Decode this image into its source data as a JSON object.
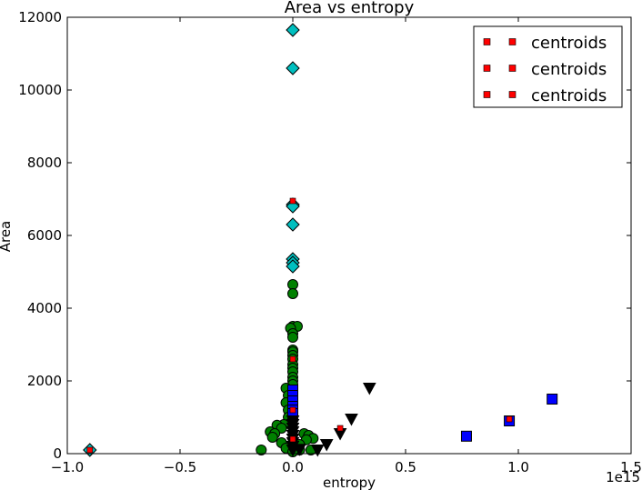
{
  "chart_data": {
    "type": "scatter",
    "title": "Area vs entropy",
    "xlabel": "entropy",
    "ylabel": "Area",
    "x_offset_label": "1e15",
    "xlim": [
      -1.0,
      1.5
    ],
    "ylim": [
      0,
      12000
    ],
    "x_ticks": [
      -1.0,
      -0.5,
      0.0,
      0.5,
      1.0,
      1.5
    ],
    "x_tick_labels": [
      "−1.0",
      "−0.5",
      "0.0",
      "0.5",
      "1.0",
      "1.5"
    ],
    "y_ticks": [
      0,
      2000,
      4000,
      6000,
      8000,
      10000,
      12000
    ],
    "y_tick_labels": [
      "0",
      "2000",
      "4000",
      "6000",
      "8000",
      "10000",
      "12000"
    ],
    "grid": false,
    "legend": {
      "placement": "top-right",
      "entries": [
        "centroids",
        "centroids",
        "centroids"
      ]
    },
    "series": [
      {
        "marker": "diamond",
        "color": "#00bfbf",
        "points": [
          [
            -0.9,
            100
          ],
          [
            0.0,
            11650
          ],
          [
            0.0,
            10600
          ],
          [
            0.0,
            6850
          ],
          [
            0.0,
            6800
          ],
          [
            0.0,
            6300
          ],
          [
            0.0,
            5350
          ],
          [
            0.0,
            5250
          ],
          [
            0.0,
            5150
          ]
        ]
      },
      {
        "marker": "circle",
        "color": "#008000",
        "points": [
          [
            0.0,
            4650
          ],
          [
            0.0,
            4400
          ],
          [
            0.0,
            3500
          ],
          [
            0.02,
            3500
          ],
          [
            -0.01,
            3450
          ],
          [
            0.0,
            3300
          ],
          [
            0.0,
            3200
          ],
          [
            0.0,
            2850
          ],
          [
            0.0,
            2800
          ],
          [
            0.0,
            2700
          ],
          [
            0.0,
            2600
          ],
          [
            0.0,
            2450
          ],
          [
            0.0,
            2350
          ],
          [
            0.0,
            2250
          ],
          [
            0.0,
            2100
          ],
          [
            0.0,
            2000
          ],
          [
            0.0,
            1900
          ],
          [
            -0.03,
            1800
          ],
          [
            0.0,
            1700
          ],
          [
            -0.02,
            1600
          ],
          [
            0.0,
            1500
          ],
          [
            -0.03,
            1400
          ],
          [
            0.0,
            1300
          ],
          [
            -0.02,
            1200
          ],
          [
            0.0,
            1100
          ],
          [
            -0.02,
            1000
          ],
          [
            -0.04,
            800
          ],
          [
            -0.07,
            780
          ],
          [
            -0.05,
            700
          ],
          [
            -0.1,
            600
          ],
          [
            -0.08,
            550
          ],
          [
            -0.09,
            450
          ],
          [
            0.05,
            550
          ],
          [
            0.07,
            500
          ],
          [
            0.09,
            420
          ],
          [
            0.06,
            380
          ],
          [
            -0.05,
            300
          ],
          [
            0.03,
            250
          ],
          [
            0.0,
            200
          ],
          [
            -0.14,
            100
          ],
          [
            -0.03,
            150
          ],
          [
            0.03,
            100
          ],
          [
            0.08,
            100
          ],
          [
            0.0,
            50
          ]
        ]
      },
      {
        "marker": "square",
        "color": "#0000ff",
        "points": [
          [
            1.15,
            1500
          ],
          [
            0.96,
            900
          ],
          [
            0.77,
            480
          ],
          [
            0.0,
            1750
          ],
          [
            0.0,
            1600
          ],
          [
            0.0,
            1450
          ],
          [
            0.0,
            1300
          ],
          [
            0.0,
            1200
          ],
          [
            0.0,
            1100
          ]
        ]
      },
      {
        "marker": "triangle-down",
        "color": "#000000",
        "points": [
          [
            0.34,
            1800
          ],
          [
            0.26,
            950
          ],
          [
            0.21,
            550
          ],
          [
            0.15,
            250
          ],
          [
            0.11,
            100
          ],
          [
            0.0,
            900
          ],
          [
            0.0,
            800
          ],
          [
            0.0,
            700
          ],
          [
            0.0,
            600
          ],
          [
            0.0,
            500
          ],
          [
            0.0,
            400
          ],
          [
            0.0,
            300
          ],
          [
            0.0,
            200
          ],
          [
            0.0,
            100
          ],
          [
            0.03,
            120
          ]
        ]
      },
      {
        "name": "centroids",
        "marker": "small-square",
        "color": "#ff0000",
        "points": [
          [
            -0.9,
            100
          ],
          [
            0.0,
            6950
          ],
          [
            0.0,
            2600
          ],
          [
            0.0,
            1200
          ],
          [
            0.0,
            400
          ],
          [
            0.21,
            700
          ],
          [
            0.96,
            950
          ]
        ]
      }
    ]
  }
}
